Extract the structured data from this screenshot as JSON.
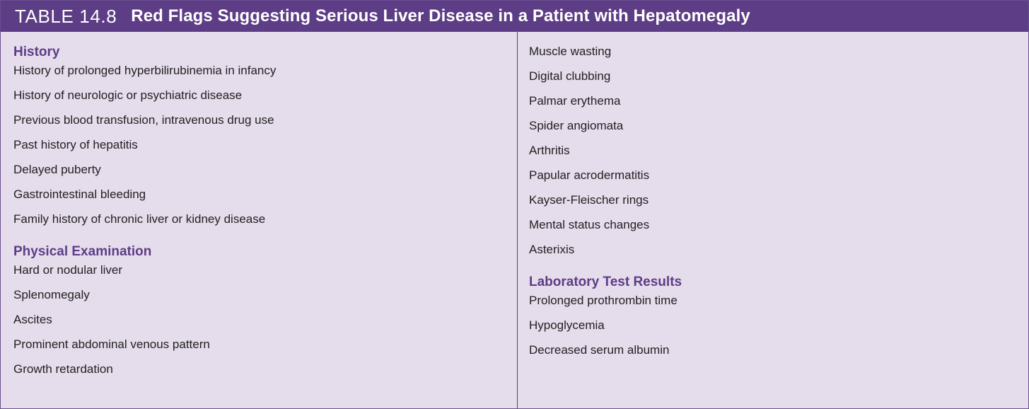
{
  "table": {
    "number": "TABLE 14.8",
    "title": "Red Flags Suggesting Serious Liver Disease in a Patient with Hepatomegaly"
  },
  "left_column": {
    "history": {
      "heading": "History",
      "items": [
        "History of prolonged hyperbilirubinemia in infancy",
        "History of neurologic or psychiatric disease",
        "Previous blood transfusion, intravenous drug use",
        "Past history of hepatitis",
        "Delayed puberty",
        "Gastrointestinal bleeding",
        "Family history of chronic liver or kidney disease"
      ]
    },
    "physical_examination": {
      "heading": "Physical Examination",
      "items": [
        "Hard or nodular liver",
        "Splenomegaly",
        "Ascites",
        "Prominent abdominal venous pattern",
        "Growth retardation"
      ]
    }
  },
  "right_column": {
    "physical_examination_continued": {
      "items": [
        "Muscle wasting",
        "Digital clubbing",
        "Palmar erythema",
        "Spider angiomata",
        "Arthritis",
        "Papular acrodermatitis",
        "Kayser-Fleischer rings",
        "Mental status changes",
        "Asterixis"
      ]
    },
    "laboratory": {
      "heading": "Laboratory Test Results",
      "items": [
        "Prolonged prothrombin time",
        "Hypoglycemia",
        "Decreased serum albumin"
      ]
    }
  }
}
